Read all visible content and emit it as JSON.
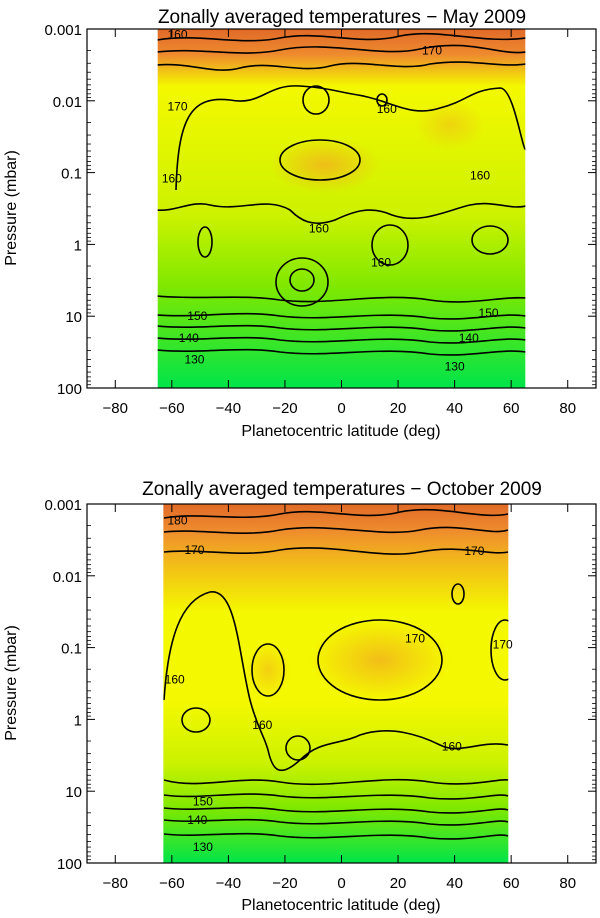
{
  "colors": {
    "cold": "#00e44a",
    "cool": "#7ee800",
    "mid": "#ccf200",
    "warm": "#f4f800",
    "hot": "#f2b41c",
    "hotter": "#ee8a2e",
    "hottest": "#e06a28",
    "contour": "#000000"
  },
  "chart_data": [
    {
      "type": "heatmap",
      "title": "Zonally averaged temperatures − May 2009",
      "xlabel": "Planetocentric latitude (deg)",
      "ylabel": "Pressure (mbar)",
      "xlim": [
        -90,
        90
      ],
      "ylim_pressure": [
        100,
        0.001
      ],
      "yscale": "log",
      "xticks": [
        -80,
        -60,
        -40,
        -20,
        0,
        20,
        40,
        60,
        80
      ],
      "yticks": [
        0.001,
        0.01,
        0.1,
        1,
        10,
        100
      ],
      "ytick_labels": [
        "0.001",
        "0.01",
        "0.1",
        "1",
        "10",
        "100"
      ],
      "data_lat_range": [
        -65,
        65
      ],
      "contour_levels_K": [
        130,
        140,
        150,
        160,
        170,
        180
      ],
      "contour_labels": [
        {
          "text": "160",
          "lat": -58,
          "p": 0.0012
        },
        {
          "text": "170",
          "lat": 32,
          "p": 0.002
        },
        {
          "text": "170",
          "lat": -58,
          "p": 0.012
        },
        {
          "text": "160",
          "lat": 16,
          "p": 0.013
        },
        {
          "text": "160",
          "lat": -60,
          "p": 0.12
        },
        {
          "text": "160",
          "lat": 49,
          "p": 0.11
        },
        {
          "text": "160",
          "lat": -8,
          "p": 0.6
        },
        {
          "text": "160",
          "lat": 14,
          "p": 1.8
        },
        {
          "text": "150",
          "lat": -51,
          "p": 10
        },
        {
          "text": "150",
          "lat": 52,
          "p": 9
        },
        {
          "text": "140",
          "lat": -54,
          "p": 20
        },
        {
          "text": "140",
          "lat": 45,
          "p": 20
        },
        {
          "text": "130",
          "lat": -52,
          "p": 40
        },
        {
          "text": "130",
          "lat": 40,
          "p": 50
        }
      ]
    },
    {
      "type": "heatmap",
      "title": "Zonally averaged temperatures − October 2009",
      "xlabel": "Planetocentric latitude (deg)",
      "ylabel": "Pressure (mbar)",
      "xlim": [
        -90,
        90
      ],
      "ylim_pressure": [
        100,
        0.001
      ],
      "yscale": "log",
      "xticks": [
        -80,
        -60,
        -40,
        -20,
        0,
        20,
        40,
        60,
        80
      ],
      "yticks": [
        0.001,
        0.01,
        0.1,
        1,
        10,
        100
      ],
      "ytick_labels": [
        "0.001",
        "0.01",
        "0.1",
        "1",
        "10",
        "100"
      ],
      "data_lat_range": [
        -63,
        59
      ],
      "contour_levels_K": [
        130,
        140,
        150,
        160,
        170,
        180
      ],
      "contour_labels": [
        {
          "text": "180",
          "lat": -58,
          "p": 0.0017
        },
        {
          "text": "170",
          "lat": -52,
          "p": 0.0044
        },
        {
          "text": "170",
          "lat": 47,
          "p": 0.0045
        },
        {
          "text": "170",
          "lat": 26,
          "p": 0.075
        },
        {
          "text": "170",
          "lat": 57,
          "p": 0.09
        },
        {
          "text": "160",
          "lat": -59,
          "p": 0.28
        },
        {
          "text": "160",
          "lat": -28,
          "p": 1.2
        },
        {
          "text": "160",
          "lat": 39,
          "p": 2.4
        },
        {
          "text": "150",
          "lat": -49,
          "p": 14
        },
        {
          "text": "140",
          "lat": -51,
          "p": 25
        },
        {
          "text": "130",
          "lat": -49,
          "p": 60
        }
      ]
    }
  ]
}
